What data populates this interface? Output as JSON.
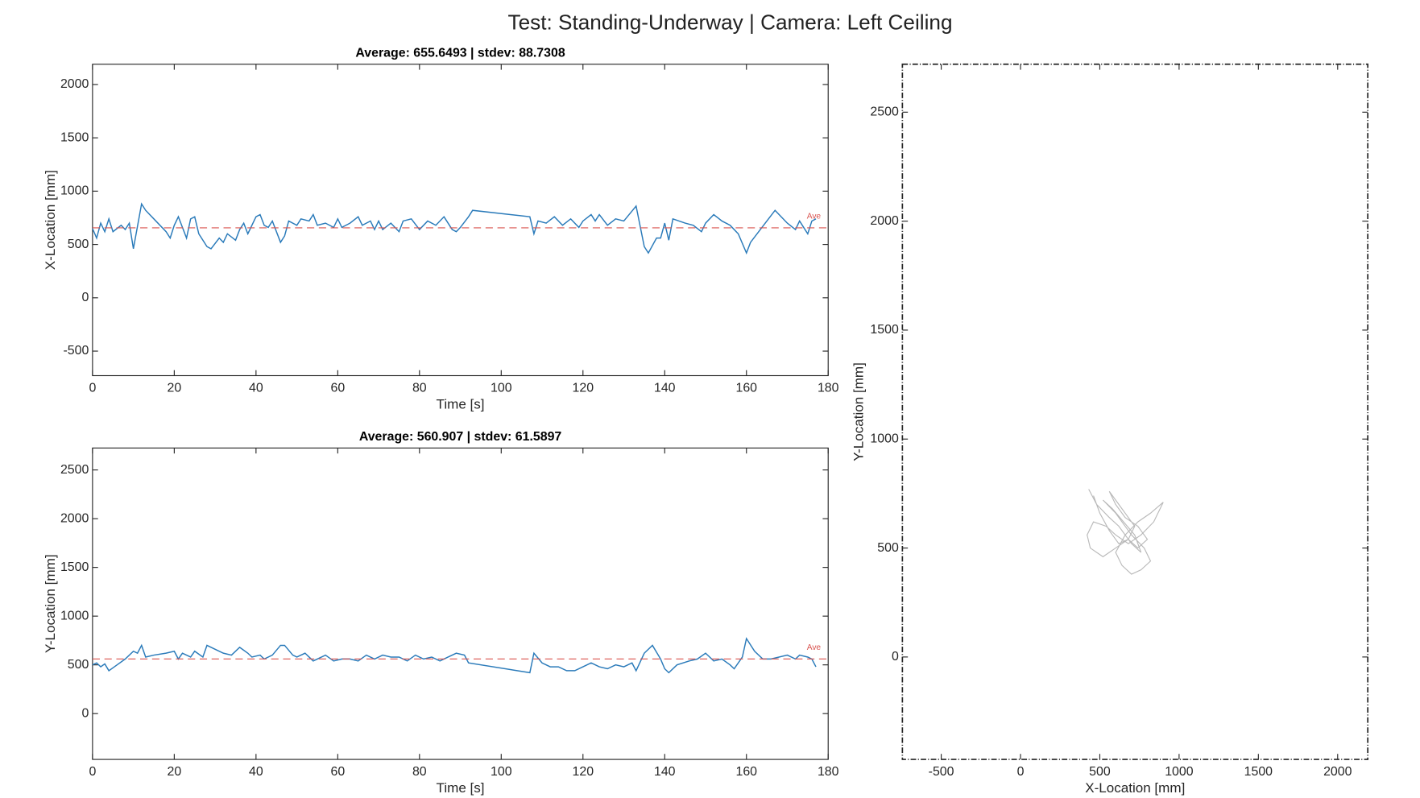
{
  "title": "Test: Standing-Underway  |  Camera: Left Ceiling",
  "chart_data": [
    {
      "type": "line",
      "title": "Average: 655.6493  |  stdev: 88.7308",
      "xlabel": "Time [s]",
      "ylabel": "X-Location [mm]",
      "xlim": [
        0,
        180
      ],
      "ylim": [
        -730,
        2190
      ],
      "xticks": [
        0,
        20,
        40,
        60,
        80,
        100,
        120,
        140,
        160,
        180
      ],
      "yticks": [
        -500,
        0,
        500,
        1000,
        1500,
        2000
      ],
      "series": [
        {
          "color": "#2b7bba",
          "x": [
            0,
            1,
            2,
            3,
            4,
            5,
            7,
            8,
            9,
            10,
            12,
            13,
            15,
            18,
            19,
            20,
            21,
            23,
            24,
            25,
            26,
            28,
            29,
            31,
            32,
            33,
            35,
            36,
            37,
            38,
            40,
            41,
            42,
            43,
            44,
            46,
            47,
            48,
            50,
            51,
            53,
            54,
            55,
            57,
            59,
            60,
            61,
            63,
            65,
            66,
            68,
            69,
            70,
            71,
            73,
            75,
            76,
            78,
            80,
            82,
            84,
            86,
            88,
            89,
            90,
            92,
            93,
            107,
            108,
            109,
            111,
            113,
            115,
            117,
            119,
            120,
            122,
            123,
            124,
            126,
            128,
            130,
            133,
            135,
            136,
            138,
            139,
            140,
            141,
            142,
            145,
            147,
            149,
            150,
            152,
            154,
            156,
            157,
            158,
            160,
            161,
            163,
            165,
            167,
            170,
            172,
            173,
            175,
            176,
            177
          ],
          "values": [
            650,
            560,
            700,
            620,
            740,
            620,
            680,
            640,
            700,
            460,
            880,
            820,
            740,
            620,
            560,
            680,
            760,
            560,
            740,
            760,
            600,
            480,
            460,
            560,
            520,
            600,
            540,
            640,
            700,
            600,
            760,
            780,
            680,
            660,
            720,
            520,
            580,
            720,
            680,
            740,
            720,
            780,
            680,
            700,
            660,
            740,
            660,
            700,
            760,
            680,
            720,
            640,
            720,
            640,
            700,
            620,
            720,
            740,
            640,
            720,
            680,
            760,
            640,
            620,
            660,
            760,
            820,
            760,
            600,
            720,
            700,
            760,
            680,
            740,
            660,
            720,
            780,
            720,
            780,
            680,
            740,
            720,
            860,
            480,
            420,
            560,
            560,
            700,
            540,
            740,
            700,
            680,
            620,
            700,
            780,
            720,
            680,
            640,
            600,
            420,
            520,
            620,
            720,
            820,
            700,
            640,
            720,
            600,
            720,
            740
          ]
        }
      ],
      "average": 655.6493,
      "average_label": "Ave",
      "average_color": "#d9534f"
    },
    {
      "type": "line",
      "title": "Average: 560.907  |  stdev: 61.5897",
      "xlabel": "Time [s]",
      "ylabel": "Y-Location [mm]",
      "xlim": [
        0,
        180
      ],
      "ylim": [
        -470,
        2725
      ],
      "xticks": [
        0,
        20,
        40,
        60,
        80,
        100,
        120,
        140,
        160,
        180
      ],
      "yticks": [
        0,
        500,
        1000,
        1500,
        2000,
        2500
      ],
      "series": [
        {
          "color": "#2b7bba",
          "x": [
            0,
            1,
            2,
            3,
            4,
            6,
            8,
            10,
            11,
            12,
            13,
            15,
            18,
            20,
            21,
            22,
            24,
            25,
            27,
            28,
            30,
            32,
            34,
            36,
            38,
            39,
            41,
            42,
            44,
            46,
            47,
            49,
            50,
            52,
            54,
            55,
            57,
            59,
            61,
            63,
            65,
            67,
            69,
            71,
            73,
            75,
            77,
            79,
            81,
            83,
            85,
            87,
            89,
            91,
            92,
            107,
            108,
            110,
            112,
            114,
            116,
            118,
            120,
            122,
            124,
            126,
            128,
            130,
            132,
            133,
            135,
            137,
            139,
            140,
            141,
            143,
            146,
            148,
            150,
            152,
            154,
            156,
            157,
            159,
            160,
            162,
            164,
            166,
            170,
            172,
            173,
            175,
            176,
            177
          ],
          "values": [
            500,
            520,
            480,
            510,
            440,
            500,
            560,
            640,
            620,
            700,
            580,
            600,
            620,
            640,
            560,
            620,
            580,
            640,
            580,
            700,
            660,
            620,
            600,
            680,
            620,
            580,
            600,
            560,
            600,
            700,
            700,
            600,
            580,
            620,
            540,
            560,
            600,
            540,
            560,
            560,
            540,
            600,
            560,
            600,
            580,
            580,
            540,
            600,
            560,
            580,
            540,
            580,
            620,
            600,
            520,
            420,
            620,
            520,
            480,
            480,
            440,
            440,
            480,
            520,
            480,
            460,
            500,
            480,
            520,
            440,
            620,
            700,
            560,
            460,
            420,
            500,
            540,
            560,
            620,
            540,
            560,
            500,
            460,
            580,
            770,
            640,
            560,
            560,
            600,
            560,
            600,
            580,
            560,
            480
          ]
        }
      ],
      "average": 560.907,
      "average_label": "Ave",
      "average_color": "#d9534f"
    },
    {
      "type": "line",
      "xlabel": "X-Location [mm]",
      "ylabel": "Y-Location [mm]",
      "xlim": [
        -745,
        2190
      ],
      "ylim": [
        -470,
        2720
      ],
      "xticks": [
        -500,
        0,
        500,
        1000,
        1500,
        2000
      ],
      "yticks": [
        0,
        500,
        1000,
        1500,
        2000,
        2500
      ],
      "series": [
        {
          "color": "#7f7f7f",
          "x": [
            430,
            480,
            560,
            620,
            700,
            760,
            720,
            650,
            580,
            520,
            600,
            700,
            780,
            820,
            760,
            700,
            640,
            600,
            660,
            740,
            820,
            900,
            840,
            760,
            680,
            600,
            540,
            460,
            420,
            440,
            520,
            600,
            680,
            740,
            800,
            740,
            660,
            600,
            560,
            640,
            720,
            680,
            620,
            560,
            500,
            460
          ],
          "values": [
            770,
            700,
            640,
            600,
            520,
            480,
            560,
            620,
            680,
            720,
            660,
            560,
            500,
            440,
            400,
            380,
            420,
            480,
            560,
            620,
            660,
            710,
            620,
            560,
            520,
            560,
            600,
            620,
            560,
            500,
            460,
            500,
            540,
            500,
            540,
            600,
            640,
            700,
            760,
            680,
            600,
            540,
            520,
            580,
            660,
            740
          ]
        }
      ]
    }
  ]
}
